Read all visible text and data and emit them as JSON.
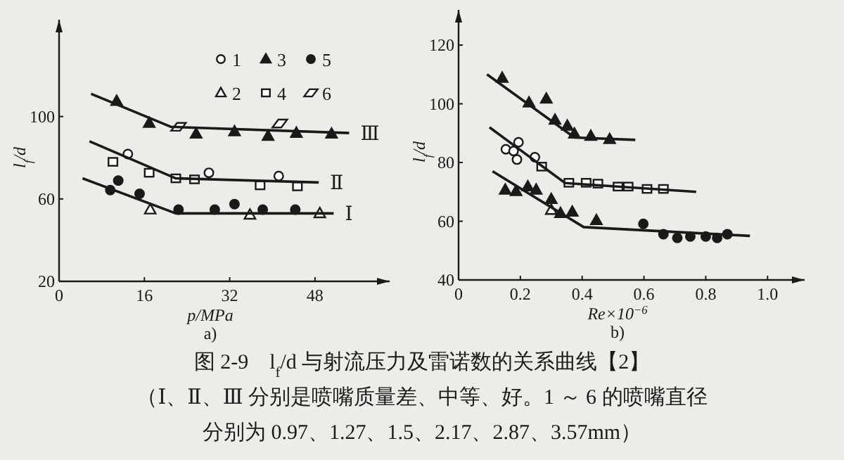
{
  "chart_data": [
    {
      "type": "scatter",
      "xlabel": "p/MPa",
      "ylabel": "l$_{f}$/d",
      "xlim": [
        0,
        62
      ],
      "ylim": [
        20,
        147
      ],
      "xticks": [
        0,
        16,
        32,
        48
      ],
      "yticks": [
        20,
        60,
        100
      ],
      "legend": "top right",
      "grid": false,
      "annotations": [
        "a)"
      ],
      "series": [
        {
          "name": "1",
          "color": "#ffffff",
          "marker": "circle",
          "x": [
            12.9,
            28.1,
            41.2
          ],
          "values": [
            81.8,
            72.7,
            71.1
          ]
        },
        {
          "name": "2",
          "color": "#ffffff",
          "marker": "triangle",
          "x": [
            17.1,
            35.8,
            48.9
          ],
          "values": [
            54.8,
            52.3,
            53
          ]
        },
        {
          "name": "3",
          "color": "#1a1a1a",
          "marker": "triangle",
          "x": [
            10.8,
            16.9,
            25.7,
            32.9,
            39.2,
            44.5,
            51.1
          ],
          "values": [
            107.5,
            96.8,
            91.6,
            92.7,
            90.5,
            92,
            91.6
          ]
        },
        {
          "name": "4",
          "color": "#ffffff",
          "marker": "square",
          "x": [
            10.1,
            16.9,
            21.9,
            25.4,
            37.7,
            44.7
          ],
          "values": [
            78,
            72.7,
            70,
            69.5,
            66.6,
            66.1
          ]
        },
        {
          "name": "5",
          "color": "#1a1a1a",
          "marker": "circle",
          "x": [
            9.6,
            11.1,
            15.1,
            22.4,
            29.2,
            32.9,
            38.2,
            44.3
          ],
          "values": [
            64.3,
            68.9,
            62.5,
            54.8,
            54.8,
            57.5,
            54.8,
            54.8
          ]
        },
        {
          "name": "6",
          "color": "#ffffff",
          "marker": "diamond",
          "x": [
            22.4,
            41.4
          ],
          "values": [
            95,
            96.6
          ]
        },
        {
          "name": "Ⅲ",
          "type": "line",
          "color": "#1a1a1a",
          "marker": "none",
          "x": [
            6,
            21,
            54.4
          ],
          "values": [
            111,
            95,
            92
          ]
        },
        {
          "name": "Ⅱ",
          "type": "line",
          "color": "#1a1a1a",
          "marker": "none",
          "x": [
            5.7,
            21.9,
            48.7
          ],
          "values": [
            88,
            70,
            68
          ]
        },
        {
          "name": "Ⅰ",
          "type": "line",
          "color": "#1a1a1a",
          "marker": "none",
          "x": [
            4.4,
            21.9,
            51.5
          ],
          "values": [
            70,
            53,
            53
          ]
        }
      ]
    },
    {
      "type": "scatter",
      "xlabel": "Re×10$^{−6}$",
      "ylabel": "l$_{f}$/d",
      "xlim": [
        0,
        1.12
      ],
      "ylim": [
        40,
        132
      ],
      "xticks": [
        0,
        0.2,
        0.4,
        0.6,
        0.8,
        {
          "value": 1,
          "label": "1.0"
        }
      ],
      "yticks": [
        40,
        60,
        80,
        100,
        120
      ],
      "grid": false,
      "annotations": [
        "b)"
      ],
      "series": [
        {
          "color": "#1a1a1a",
          "marker": "triangle",
          "x": [
            0.141,
            0.228,
            0.284,
            0.312,
            0.352,
            0.375,
            0.428,
            0.489
          ],
          "values": [
            108.8,
            100.4,
            101.7,
            94.5,
            92.5,
            89.8,
            89,
            87.9
          ]
        },
        {
          "color": "#ffffff",
          "marker": "circle",
          "x": [
            0.153,
            0.178,
            0.194,
            0.189,
            0.247
          ],
          "values": [
            84.5,
            83.9,
            86.9,
            81,
            81.8
          ]
        },
        {
          "color": "#ffffff",
          "marker": "square",
          "x": [
            0.269,
            0.357,
            0.413,
            0.451,
            0.516,
            0.549,
            0.61,
            0.663
          ],
          "values": [
            78.6,
            73.1,
            73.1,
            72.8,
            71.8,
            71.8,
            71,
            71
          ]
        },
        {
          "color": "#1a1a1a",
          "marker": "triangle",
          "x": [
            0.151,
            0.186,
            0.224,
            0.251,
            0.3,
            0.33,
            0.368,
            0.446
          ],
          "values": [
            70.7,
            70.2,
            71.8,
            70.7,
            67.5,
            62.7,
            63.2,
            60.3
          ]
        },
        {
          "color": "#ffffff",
          "marker": "triangle",
          "x": [
            0.3
          ],
          "values": [
            63.8
          ]
        },
        {
          "color": "#1a1a1a",
          "marker": "circle",
          "x": [
            0.598,
            0.663,
            0.708,
            0.75,
            0.8,
            0.837,
            0.87
          ],
          "values": [
            59.1,
            55.6,
            54.3,
            54.8,
            54.8,
            54.3,
            55.6
          ]
        },
        {
          "type": "line",
          "color": "#1a1a1a",
          "marker": "none",
          "x": [
            0.092,
            0.375,
            0.572
          ],
          "values": [
            110,
            88.5,
            87.7
          ]
        },
        {
          "type": "line",
          "color": "#1a1a1a",
          "marker": "none",
          "x": [
            0.1,
            0.345,
            0.769
          ],
          "values": [
            92,
            73,
            70
          ]
        },
        {
          "type": "line",
          "color": "#1a1a1a",
          "marker": "none",
          "x": [
            0.11,
            0.405,
            0.943
          ],
          "values": [
            77,
            58,
            55
          ]
        }
      ]
    },
    {
      "type": "other",
      "annotations": [
        "图 2-9　l$_{f}$/d 与射流压力及雷诺数的关系曲线【2】",
        "（Ⅰ、Ⅱ、Ⅲ 分别是喷嘴质量差、中等、好。1 ～ 6 的喷嘴直径",
        "分别为 0.97、1.27、1.5、2.17、2.87、3.57mm）"
      ]
    }
  ]
}
